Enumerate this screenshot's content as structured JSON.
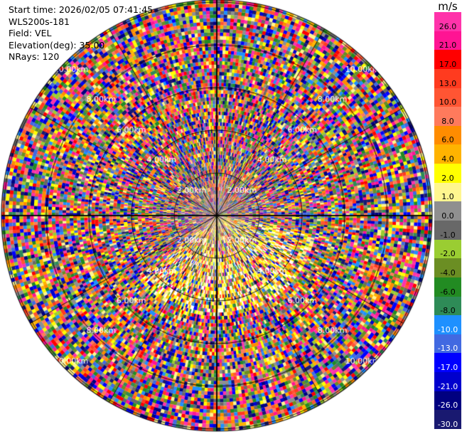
{
  "info": {
    "start_time": "Start time: 2026/02/05 07:41:45",
    "instrument": "WLS200s-181",
    "field": "Field: VEL",
    "elevation": "Elevation(deg): 35.00",
    "nrays": "NRays: 120"
  },
  "colorbar": {
    "unit": "m/s",
    "ticks": [
      "26.0",
      "21.0",
      "17.0",
      "13.0",
      "10.0",
      "8.0",
      "6.0",
      "4.0",
      "2.0",
      "1.0",
      "0.0",
      "-1.0",
      "-2.0",
      "-4.0",
      "-6.0",
      "-8.0",
      "-10.0",
      "-13.0",
      "-17.0",
      "-21.0",
      "-26.0",
      "-30.0"
    ],
    "colors": [
      "#ff33aa",
      "#ff1493",
      "#ff0000",
      "#ff3b1f",
      "#ff5533",
      "#ff7a5c",
      "#ff8c00",
      "#ffb300",
      "#ffff00",
      "#fff68f",
      "#8f8f8f",
      "#686868",
      "#9acd32",
      "#6b8e23",
      "#228b22",
      "#2e8b57",
      "#1e90ff",
      "#4169e1",
      "#0000ff",
      "#0000cd",
      "#000080",
      "#191970"
    ]
  },
  "chart_data": {
    "type": "heatmap",
    "projection": "polar PPI",
    "field": "VEL",
    "units": "m/s",
    "elevation_deg": 35.0,
    "n_rays": 120,
    "range_ring_labels": [
      "2.00km",
      "4.00km",
      "6.00km",
      "8.00km",
      "10.00km"
    ],
    "color_scale_min": -30.0,
    "color_scale_max": 26.0,
    "grid": true
  }
}
